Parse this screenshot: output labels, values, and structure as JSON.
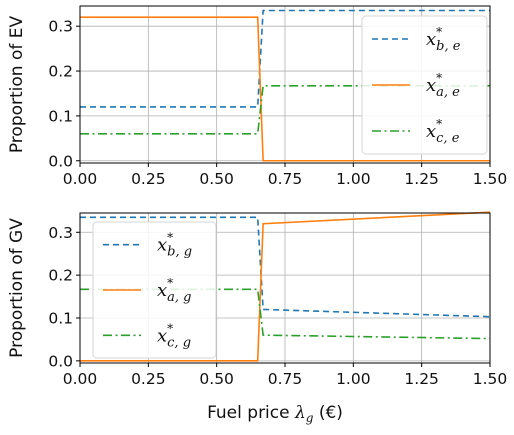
{
  "chart_data": [
    {
      "type": "line",
      "ylabel": "Proportion of EV",
      "xlabel": "",
      "xlim": [
        0,
        1.5
      ],
      "ylim": [
        -0.005,
        0.345
      ],
      "xticks": [
        "0.00",
        "0.25",
        "0.50",
        "0.75",
        "1.00",
        "1.25",
        "1.50"
      ],
      "yticks": [
        "0.0",
        "0.1",
        "0.2",
        "0.3"
      ],
      "grid": true,
      "legend_position": "right",
      "series": [
        {
          "name": "x*_{b,e}",
          "name_base": "x",
          "name_sup": "*",
          "name_sub": "b, e",
          "color": "#1f77b4",
          "dash": "dashed",
          "points": [
            [
              0,
              0.12
            ],
            [
              0.65,
              0.12
            ],
            [
              0.67,
              0.335
            ],
            [
              1.5,
              0.335
            ]
          ]
        },
        {
          "name": "x*_{a,e}",
          "name_base": "x",
          "name_sup": "*",
          "name_sub": "a, e",
          "color": "#ff7f0e",
          "dash": "solid",
          "points": [
            [
              0,
              0.32
            ],
            [
              0.65,
              0.32
            ],
            [
              0.67,
              0.0
            ],
            [
              1.5,
              0.0
            ]
          ]
        },
        {
          "name": "x*_{c,e}",
          "name_base": "x",
          "name_sup": "*",
          "name_sub": "c, e",
          "color": "#2ca02c",
          "dash": "dashdot",
          "points": [
            [
              0,
              0.06
            ],
            [
              0.65,
              0.06
            ],
            [
              0.67,
              0.167
            ],
            [
              1.5,
              0.167
            ]
          ]
        }
      ]
    },
    {
      "type": "line",
      "ylabel": "Proportion of GV",
      "xlabel": "Fuel price λ_g (€)",
      "xlabel_pre": "Fuel price ",
      "xlabel_sym": "λ",
      "xlabel_sub": "g",
      "xlabel_post": " (€)",
      "xlim": [
        0,
        1.5
      ],
      "ylim": [
        -0.005,
        0.345
      ],
      "xticks": [
        "0.00",
        "0.25",
        "0.50",
        "0.75",
        "1.00",
        "1.25",
        "1.50"
      ],
      "yticks": [
        "0.0",
        "0.1",
        "0.2",
        "0.3"
      ],
      "grid": true,
      "legend_position": "left",
      "series": [
        {
          "name": "x*_{b,g}",
          "name_base": "x",
          "name_sup": "*",
          "name_sub": "b, g",
          "color": "#1f77b4",
          "dash": "dashed",
          "points": [
            [
              0,
              0.335
            ],
            [
              0.65,
              0.335
            ],
            [
              0.67,
              0.12
            ],
            [
              1.5,
              0.103
            ]
          ]
        },
        {
          "name": "x*_{a,g}",
          "name_base": "x",
          "name_sup": "*",
          "name_sub": "a, g",
          "color": "#ff7f0e",
          "dash": "solid",
          "points": [
            [
              0,
              0.0
            ],
            [
              0.65,
              0.0
            ],
            [
              0.67,
              0.32
            ],
            [
              1.5,
              0.347
            ]
          ]
        },
        {
          "name": "x*_{c,g}",
          "name_base": "x",
          "name_sup": "*",
          "name_sub": "c, g",
          "color": "#2ca02c",
          "dash": "dashdot",
          "points": [
            [
              0,
              0.167
            ],
            [
              0.65,
              0.167
            ],
            [
              0.67,
              0.06
            ],
            [
              1.5,
              0.052
            ]
          ]
        }
      ]
    }
  ]
}
